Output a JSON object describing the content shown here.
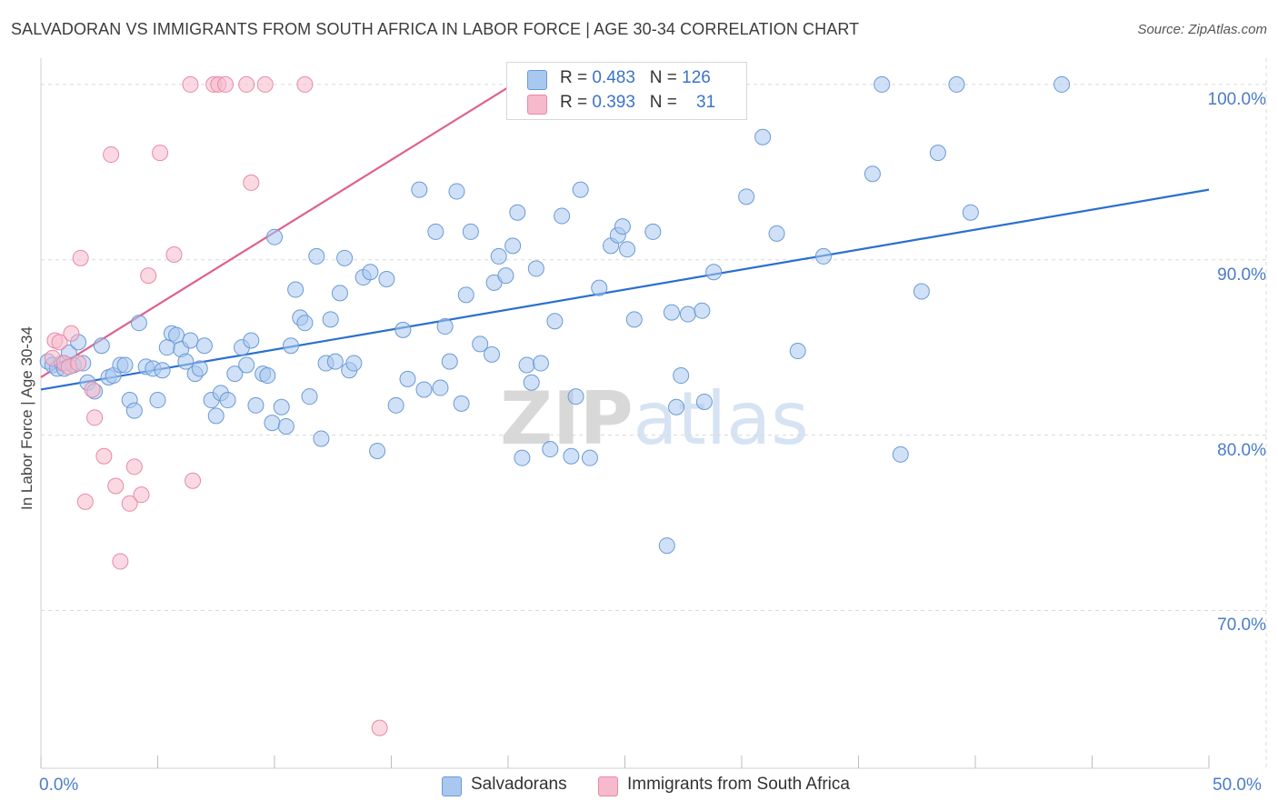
{
  "title": "SALVADORAN VS IMMIGRANTS FROM SOUTH AFRICA IN LABOR FORCE | AGE 30-34 CORRELATION CHART",
  "source": "Source: ZipAtlas.com",
  "watermark": "ZIPatlas",
  "colors": {
    "blue_fill": "#a9c8f0",
    "blue_stroke": "#6a9ad6",
    "blue_line": "#2a6fd0",
    "pink_fill": "#f7b9cc",
    "pink_stroke": "#e68aa8",
    "pink_line": "#e06090",
    "tick_label": "#4a7cc9",
    "grid": "#d9d9d9"
  },
  "legend": {
    "rows": [
      {
        "r_label": "R =",
        "r_value": "0.483",
        "n_label": "N =",
        "n_value": "126"
      },
      {
        "r_label": "R =",
        "r_value": "0.393",
        "n_label": "N =",
        "n_value": "31"
      }
    ]
  },
  "bottom_legend": [
    "Salvadorans",
    "Immigrants from South Africa"
  ],
  "chart_data": {
    "type": "scatter",
    "title": "SALVADORAN VS IMMIGRANTS FROM SOUTH AFRICA IN LABOR FORCE | AGE 30-34 CORRELATION CHART",
    "xlabel": "",
    "ylabel": "In Labor Force | Age 30-34",
    "xlim": [
      0,
      50
    ],
    "ylim": [
      61,
      101.5
    ],
    "x_tick_labels": [
      "0.0%",
      "50.0%"
    ],
    "y_ticks": [
      70,
      80,
      90,
      100
    ],
    "y_tick_labels": [
      "70.0%",
      "80.0%",
      "90.0%",
      "100.0%"
    ],
    "grid": true,
    "legend_position": "top-center",
    "series": [
      {
        "name": "Salvadorans",
        "color": "blue",
        "trend": {
          "x": [
            0,
            50
          ],
          "y": [
            82.6,
            94.0
          ]
        },
        "points": [
          [
            0.3,
            84.2
          ],
          [
            0.5,
            84.0
          ],
          [
            0.7,
            83.8
          ],
          [
            0.9,
            84.1
          ],
          [
            1.0,
            83.8
          ],
          [
            1.2,
            84.7
          ],
          [
            1.4,
            84.0
          ],
          [
            1.6,
            85.3
          ],
          [
            1.8,
            84.1
          ],
          [
            2.0,
            83.0
          ],
          [
            2.3,
            82.5
          ],
          [
            2.6,
            85.1
          ],
          [
            2.9,
            83.3
          ],
          [
            3.1,
            83.4
          ],
          [
            3.4,
            84.0
          ],
          [
            3.6,
            84.0
          ],
          [
            3.8,
            82.0
          ],
          [
            4.0,
            81.4
          ],
          [
            4.2,
            86.4
          ],
          [
            4.5,
            83.9
          ],
          [
            4.8,
            83.8
          ],
          [
            5.0,
            82.0
          ],
          [
            5.2,
            83.7
          ],
          [
            5.4,
            85.0
          ],
          [
            5.6,
            85.8
          ],
          [
            5.8,
            85.7
          ],
          [
            6.0,
            84.9
          ],
          [
            6.2,
            84.2
          ],
          [
            6.4,
            85.4
          ],
          [
            6.6,
            83.5
          ],
          [
            6.8,
            83.8
          ],
          [
            7.0,
            85.1
          ],
          [
            7.3,
            82.0
          ],
          [
            7.5,
            81.1
          ],
          [
            7.7,
            82.4
          ],
          [
            8.0,
            82.0
          ],
          [
            8.3,
            83.5
          ],
          [
            8.6,
            85.0
          ],
          [
            8.8,
            84.0
          ],
          [
            9.0,
            85.4
          ],
          [
            9.2,
            81.7
          ],
          [
            9.5,
            83.5
          ],
          [
            9.7,
            83.4
          ],
          [
            9.9,
            80.7
          ],
          [
            10.0,
            91.3
          ],
          [
            10.3,
            81.6
          ],
          [
            10.5,
            80.5
          ],
          [
            10.7,
            85.1
          ],
          [
            10.9,
            88.3
          ],
          [
            11.1,
            86.7
          ],
          [
            11.3,
            86.4
          ],
          [
            11.5,
            82.2
          ],
          [
            11.8,
            90.2
          ],
          [
            12.0,
            79.8
          ],
          [
            12.2,
            84.1
          ],
          [
            12.4,
            86.6
          ],
          [
            12.6,
            84.2
          ],
          [
            12.8,
            88.1
          ],
          [
            13.0,
            90.1
          ],
          [
            13.2,
            83.7
          ],
          [
            13.4,
            84.1
          ],
          [
            13.8,
            89.0
          ],
          [
            14.1,
            89.3
          ],
          [
            14.4,
            79.1
          ],
          [
            14.8,
            88.9
          ],
          [
            15.2,
            81.7
          ],
          [
            15.5,
            86.0
          ],
          [
            15.7,
            83.2
          ],
          [
            16.2,
            94.0
          ],
          [
            16.4,
            82.6
          ],
          [
            16.9,
            91.6
          ],
          [
            17.1,
            82.7
          ],
          [
            17.3,
            86.2
          ],
          [
            17.5,
            84.2
          ],
          [
            17.8,
            93.9
          ],
          [
            18.0,
            81.8
          ],
          [
            18.2,
            88.0
          ],
          [
            18.4,
            91.6
          ],
          [
            18.8,
            85.2
          ],
          [
            19.3,
            84.6
          ],
          [
            19.4,
            88.7
          ],
          [
            19.6,
            90.2
          ],
          [
            19.9,
            89.1
          ],
          [
            20.2,
            90.8
          ],
          [
            20.4,
            92.7
          ],
          [
            20.6,
            78.7
          ],
          [
            20.8,
            84.0
          ],
          [
            21.0,
            83.0
          ],
          [
            21.2,
            89.5
          ],
          [
            21.4,
            84.1
          ],
          [
            21.8,
            79.2
          ],
          [
            22.0,
            86.5
          ],
          [
            22.3,
            92.5
          ],
          [
            22.7,
            78.8
          ],
          [
            22.9,
            82.2
          ],
          [
            23.1,
            94.0
          ],
          [
            23.5,
            78.7
          ],
          [
            23.9,
            88.4
          ],
          [
            24.4,
            90.8
          ],
          [
            24.7,
            91.4
          ],
          [
            24.9,
            91.9
          ],
          [
            25.1,
            90.6
          ],
          [
            25.4,
            86.6
          ],
          [
            26.0,
            100.0
          ],
          [
            26.2,
            91.6
          ],
          [
            26.8,
            73.7
          ],
          [
            27.0,
            87.0
          ],
          [
            27.2,
            81.6
          ],
          [
            27.4,
            83.4
          ],
          [
            27.7,
            86.9
          ],
          [
            28.3,
            87.1
          ],
          [
            28.4,
            81.9
          ],
          [
            28.8,
            89.3
          ],
          [
            30.2,
            93.6
          ],
          [
            30.9,
            97.0
          ],
          [
            31.5,
            91.5
          ],
          [
            32.4,
            84.8
          ],
          [
            33.5,
            90.2
          ],
          [
            35.6,
            94.9
          ],
          [
            36.0,
            100.0
          ],
          [
            36.8,
            78.9
          ],
          [
            37.7,
            88.2
          ],
          [
            38.4,
            96.1
          ],
          [
            39.2,
            100.0
          ],
          [
            39.8,
            92.7
          ],
          [
            43.7,
            100.0
          ]
        ]
      },
      {
        "name": "Immigrants from South Africa",
        "color": "pink",
        "trend": {
          "x": [
            0,
            20.2
          ],
          "y": [
            83.3,
            100.0
          ]
        },
        "points": [
          [
            0.5,
            84.4
          ],
          [
            0.6,
            85.4
          ],
          [
            0.8,
            85.3
          ],
          [
            1.0,
            84.1
          ],
          [
            1.2,
            83.9
          ],
          [
            1.3,
            85.8
          ],
          [
            1.6,
            84.1
          ],
          [
            1.7,
            90.1
          ],
          [
            1.9,
            76.2
          ],
          [
            2.2,
            82.6
          ],
          [
            2.3,
            81.0
          ],
          [
            2.7,
            78.8
          ],
          [
            3.0,
            96.0
          ],
          [
            3.2,
            77.1
          ],
          [
            3.4,
            72.8
          ],
          [
            3.8,
            76.1
          ],
          [
            4.0,
            78.2
          ],
          [
            4.3,
            76.6
          ],
          [
            4.6,
            89.1
          ],
          [
            5.1,
            96.1
          ],
          [
            5.7,
            90.3
          ],
          [
            6.4,
            100.0
          ],
          [
            6.5,
            77.4
          ],
          [
            7.4,
            100.0
          ],
          [
            7.6,
            100.0
          ],
          [
            7.9,
            100.0
          ],
          [
            8.8,
            100.0
          ],
          [
            9.0,
            94.4
          ],
          [
            9.6,
            100.0
          ],
          [
            11.3,
            100.0
          ],
          [
            14.5,
            63.3
          ]
        ]
      }
    ]
  }
}
